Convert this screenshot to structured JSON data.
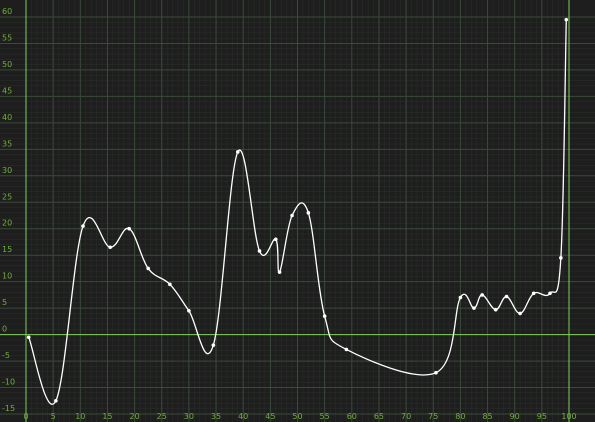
{
  "chart_data": {
    "type": "line",
    "title": "",
    "xlabel": "",
    "ylabel": "",
    "xlim": [
      0,
      100
    ],
    "ylim": [
      -15,
      60
    ],
    "x_ticks": [
      0,
      5,
      10,
      15,
      20,
      25,
      30,
      35,
      40,
      45,
      50,
      55,
      60,
      65,
      70,
      75,
      80,
      85,
      90,
      95,
      100
    ],
    "y_ticks": [
      60,
      55,
      50,
      45,
      40,
      35,
      30,
      25,
      20,
      15,
      10,
      5,
      0,
      -5,
      -10,
      -15
    ],
    "grid": true,
    "colors": {
      "background": "#1e1e1e",
      "grid_major": "#3a4a3a",
      "grid_minor": "#2a302a",
      "axis": "#7fcf5a",
      "tick_label": "#6fae3a",
      "line": "#ffffff"
    },
    "series": [
      {
        "points": [
          [
            0.5,
            -0.5
          ],
          [
            5.5,
            -12.5
          ],
          [
            10.5,
            20.5
          ],
          [
            15.5,
            16.5
          ],
          [
            19,
            20
          ],
          [
            22.5,
            12.5
          ],
          [
            26.5,
            9.5
          ],
          [
            30,
            4.5
          ],
          [
            34.5,
            -2
          ],
          [
            39,
            34.5
          ],
          [
            43,
            15.8
          ],
          [
            46,
            18
          ],
          [
            46.7,
            11.8
          ],
          [
            49,
            22.5
          ],
          [
            52,
            23
          ],
          [
            55,
            3.5
          ],
          [
            59,
            -2.8
          ],
          [
            75.5,
            -7.2
          ],
          [
            80,
            7
          ],
          [
            82.5,
            5
          ],
          [
            84,
            7.5
          ],
          [
            86.5,
            4.7
          ],
          [
            88.5,
            7.2
          ],
          [
            91,
            4
          ],
          [
            93.5,
            7.8
          ],
          [
            96.5,
            7.8
          ],
          [
            98.5,
            14.5
          ],
          [
            99.5,
            59.5
          ]
        ]
      }
    ]
  }
}
